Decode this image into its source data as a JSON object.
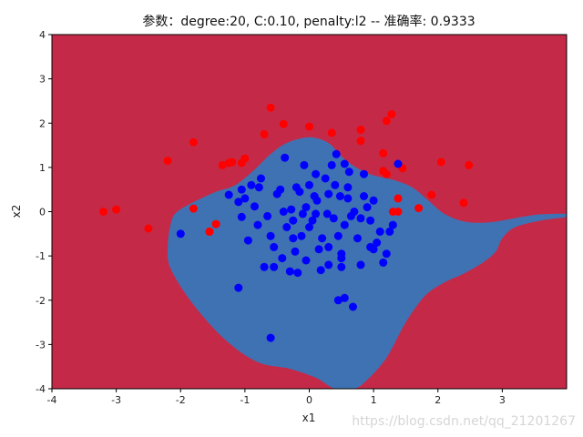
{
  "chart_data": {
    "type": "scatter",
    "title": "参数：degree:20, C:0.10, penalty:l2 -- 准确率: 0.9333",
    "xlabel": "x1",
    "ylabel": "x2",
    "xlim": [
      -4,
      4
    ],
    "ylim": [
      -4,
      4
    ],
    "x_ticks": [
      -4,
      -3,
      -2,
      -1,
      0,
      1,
      2,
      3
    ],
    "y_ticks": [
      -4,
      -3,
      -2,
      -1,
      0,
      1,
      2,
      3,
      4
    ],
    "grid": false,
    "background_region_color": "#c42a48",
    "decision_region_color": "#3f72b3",
    "decision_region_boundary": [
      [
        -2.15,
        -0.25
      ],
      [
        -2.05,
        0.0
      ],
      [
        -1.75,
        0.25
      ],
      [
        -1.45,
        0.45
      ],
      [
        -1.15,
        0.6
      ],
      [
        -0.85,
        0.95
      ],
      [
        -0.6,
        1.3
      ],
      [
        -0.35,
        1.55
      ],
      [
        0.0,
        1.68
      ],
      [
        0.3,
        1.55
      ],
      [
        0.5,
        1.25
      ],
      [
        0.75,
        0.98
      ],
      [
        1.0,
        0.82
      ],
      [
        1.3,
        0.72
      ],
      [
        1.6,
        0.55
      ],
      [
        1.85,
        0.25
      ],
      [
        2.1,
        -0.05
      ],
      [
        2.4,
        -0.22
      ],
      [
        2.7,
        -0.25
      ],
      [
        3.0,
        -0.2
      ],
      [
        3.3,
        -0.12
      ],
      [
        3.6,
        -0.06
      ],
      [
        4.0,
        -0.05
      ],
      [
        4.0,
        -0.12
      ],
      [
        3.6,
        -0.2
      ],
      [
        3.2,
        -0.35
      ],
      [
        3.0,
        -0.6
      ],
      [
        2.9,
        -0.9
      ],
      [
        2.7,
        -1.15
      ],
      [
        2.4,
        -1.4
      ],
      [
        2.1,
        -1.6
      ],
      [
        1.8,
        -1.9
      ],
      [
        1.5,
        -2.5
      ],
      [
        1.2,
        -3.3
      ],
      [
        0.9,
        -3.8
      ],
      [
        0.7,
        -4.0
      ],
      [
        0.4,
        -4.0
      ],
      [
        0.1,
        -3.75
      ],
      [
        -0.3,
        -3.55
      ],
      [
        -0.8,
        -3.4
      ],
      [
        -1.3,
        -2.9
      ],
      [
        -1.8,
        -2.1
      ],
      [
        -2.15,
        -1.3
      ],
      [
        -2.2,
        -0.8
      ]
    ],
    "series": [
      {
        "color": "#ff0000",
        "points": [
          [
            -3.2,
            0.0
          ],
          [
            -3.0,
            0.05
          ],
          [
            -2.5,
            -0.38
          ],
          [
            -2.2,
            1.15
          ],
          [
            -1.8,
            1.57
          ],
          [
            -1.8,
            0.07
          ],
          [
            -1.55,
            -0.45
          ],
          [
            -1.45,
            -0.28
          ],
          [
            -1.35,
            1.05
          ],
          [
            -1.25,
            1.1
          ],
          [
            -1.2,
            1.12
          ],
          [
            -1.05,
            1.1
          ],
          [
            -1.0,
            1.2
          ],
          [
            -0.7,
            1.75
          ],
          [
            -0.6,
            2.35
          ],
          [
            -0.4,
            1.98
          ],
          [
            0.0,
            1.92
          ],
          [
            0.35,
            1.78
          ],
          [
            0.8,
            1.85
          ],
          [
            0.8,
            1.6
          ],
          [
            1.2,
            2.05
          ],
          [
            1.28,
            2.2
          ],
          [
            1.15,
            1.32
          ],
          [
            1.15,
            0.92
          ],
          [
            1.2,
            0.85
          ],
          [
            1.3,
            0.0
          ],
          [
            1.38,
            0.0
          ],
          [
            1.38,
            0.3
          ],
          [
            1.45,
            0.98
          ],
          [
            1.7,
            0.08
          ],
          [
            1.9,
            0.38
          ],
          [
            2.05,
            1.12
          ],
          [
            2.4,
            0.2
          ],
          [
            2.48,
            1.05
          ],
          [
            -1.55,
            -0.45
          ]
        ]
      },
      {
        "color": "#0000ff",
        "points": [
          [
            -2.0,
            -0.5
          ],
          [
            -1.25,
            0.38
          ],
          [
            -1.1,
            0.22
          ],
          [
            -1.05,
            -0.12
          ],
          [
            -1.05,
            0.5
          ],
          [
            -1.0,
            0.3
          ],
          [
            -0.95,
            -0.65
          ],
          [
            -0.9,
            0.6
          ],
          [
            -0.85,
            0.12
          ],
          [
            -0.8,
            -0.3
          ],
          [
            -0.78,
            0.55
          ],
          [
            -0.75,
            0.75
          ],
          [
            -0.7,
            -1.25
          ],
          [
            -0.65,
            -0.1
          ],
          [
            -0.6,
            -0.55
          ],
          [
            -0.55,
            -0.8
          ],
          [
            -0.55,
            -1.25
          ],
          [
            -0.5,
            0.4
          ],
          [
            -0.45,
            0.5
          ],
          [
            -0.42,
            -1.05
          ],
          [
            -0.4,
            0.0
          ],
          [
            -0.38,
            1.22
          ],
          [
            -0.35,
            -0.35
          ],
          [
            -0.3,
            -1.35
          ],
          [
            -0.28,
            0.05
          ],
          [
            -0.25,
            -0.2
          ],
          [
            -0.22,
            -0.9
          ],
          [
            -0.2,
            0.55
          ],
          [
            -0.18,
            -1.38
          ],
          [
            -0.15,
            0.45
          ],
          [
            -0.12,
            -0.55
          ],
          [
            -0.1,
            -0.05
          ],
          [
            -0.08,
            1.05
          ],
          [
            -0.05,
            0.1
          ],
          [
            0.0,
            0.6
          ],
          [
            0.0,
            -0.35
          ],
          [
            0.05,
            -0.2
          ],
          [
            0.08,
            0.35
          ],
          [
            0.1,
            -0.05
          ],
          [
            0.12,
            0.25
          ],
          [
            0.15,
            -0.85
          ],
          [
            0.18,
            -1.32
          ],
          [
            0.2,
            -0.6
          ],
          [
            0.25,
            0.75
          ],
          [
            0.28,
            -0.05
          ],
          [
            0.3,
            -1.2
          ],
          [
            0.3,
            0.4
          ],
          [
            0.35,
            1.05
          ],
          [
            0.38,
            -0.15
          ],
          [
            0.4,
            0.6
          ],
          [
            0.42,
            1.3
          ],
          [
            0.45,
            -0.55
          ],
          [
            0.48,
            0.35
          ],
          [
            0.5,
            -0.95
          ],
          [
            0.5,
            -1.05
          ],
          [
            0.5,
            -1.25
          ],
          [
            0.55,
            1.08
          ],
          [
            0.55,
            -0.3
          ],
          [
            0.6,
            0.3
          ],
          [
            0.6,
            0.55
          ],
          [
            0.62,
            0.9
          ],
          [
            0.65,
            -0.1
          ],
          [
            0.68,
            -2.15
          ],
          [
            0.7,
            0.0
          ],
          [
            0.75,
            -0.6
          ],
          [
            0.8,
            -0.15
          ],
          [
            0.8,
            -1.2
          ],
          [
            0.85,
            0.35
          ],
          [
            0.9,
            0.1
          ],
          [
            0.95,
            -0.2
          ],
          [
            0.95,
            -0.8
          ],
          [
            1.0,
            -0.85
          ],
          [
            1.0,
            0.25
          ],
          [
            1.05,
            -0.7
          ],
          [
            1.1,
            -0.45
          ],
          [
            1.15,
            -1.15
          ],
          [
            1.2,
            -0.95
          ],
          [
            1.25,
            -0.45
          ],
          [
            1.3,
            -0.3
          ],
          [
            1.38,
            1.08
          ],
          [
            -1.1,
            -1.72
          ],
          [
            -0.6,
            -2.85
          ],
          [
            0.45,
            -2.0
          ],
          [
            0.55,
            -1.95
          ],
          [
            -0.25,
            -0.6
          ],
          [
            0.1,
            0.85
          ],
          [
            -0.05,
            -1.1
          ],
          [
            0.3,
            -0.8
          ],
          [
            0.85,
            0.85
          ]
        ]
      }
    ]
  },
  "watermark": "https://blog.csdn.net/qq_21201267"
}
